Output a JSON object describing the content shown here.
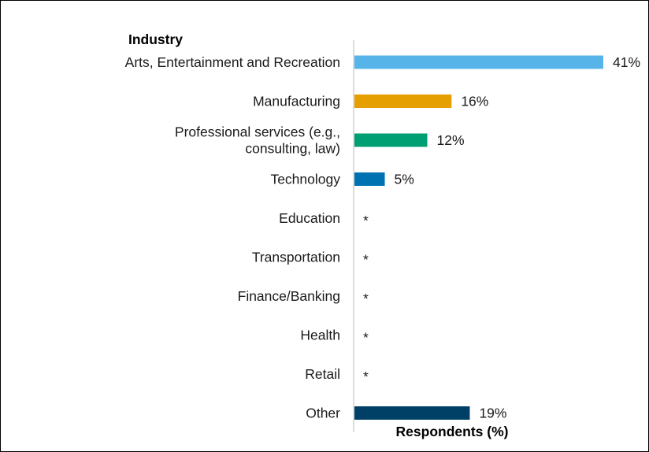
{
  "chart_data": {
    "type": "bar",
    "orientation": "horizontal",
    "ylabel": "Industry",
    "xlabel": "Respondents (%)",
    "xlim": [
      0,
      41
    ],
    "grid": false,
    "legend": "none",
    "categories": [
      "Arts, Entertainment and Recreation",
      "Manufacturing",
      "Professional services (e.g., consulting, law)",
      "Technology",
      "Education",
      "Transportation",
      "Finance/Banking",
      "Health",
      "Retail",
      "Other"
    ],
    "category_lines": [
      [
        "Arts, Entertainment and Recreation"
      ],
      [
        "Manufacturing"
      ],
      [
        "Professional services (e.g.,",
        "consulting, law)"
      ],
      [
        "Technology"
      ],
      [
        "Education"
      ],
      [
        "Transportation"
      ],
      [
        "Finance/Banking"
      ],
      [
        "Health"
      ],
      [
        "Retail"
      ],
      [
        "Other"
      ]
    ],
    "values": [
      41,
      16,
      12,
      5,
      0,
      0,
      0,
      0,
      0,
      19
    ],
    "value_labels": [
      "41%",
      "16%",
      "12%",
      "5%",
      "*",
      "*",
      "*",
      "*",
      "*",
      "19%"
    ],
    "colors": [
      "#56B4E9",
      "#E69F00",
      "#009E73",
      "#0072B2",
      "#56B4E9",
      "#56B4E9",
      "#56B4E9",
      "#56B4E9",
      "#56B4E9",
      "#003F66"
    ],
    "axis_color": "#D0D0D0"
  }
}
